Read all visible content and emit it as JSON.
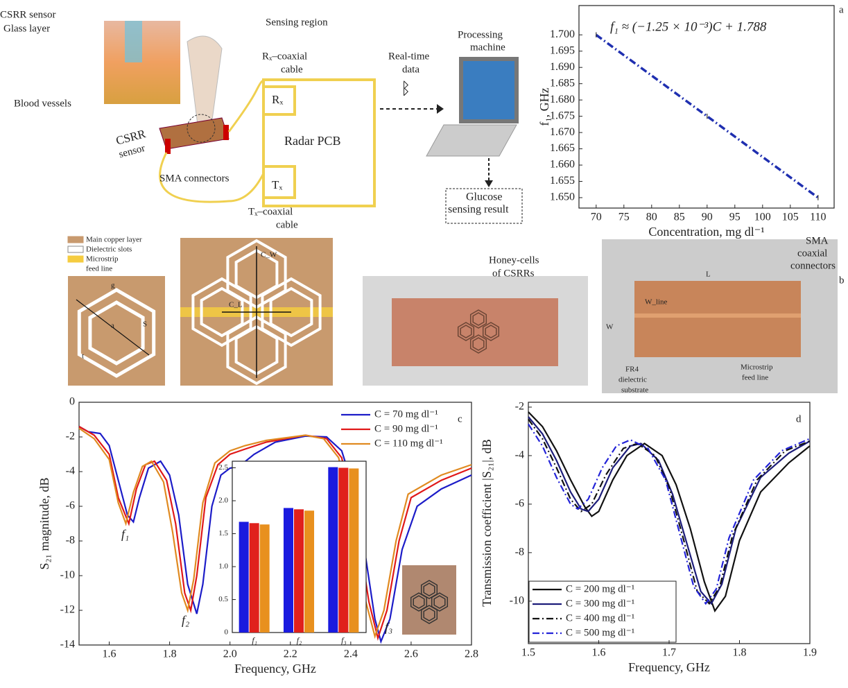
{
  "chart_data": [
    {
      "type": "line",
      "label": "a",
      "annotation": "f₁ ≈ (−1.25 × 10⁻³)C + 1.788",
      "x_label": "Concentration, mg dl⁻¹",
      "y_label": "f₁, GHz",
      "xlim": [
        66.9,
        112.9
      ],
      "ylim": [
        1.6468,
        1.709
      ],
      "xticks": [
        70,
        75,
        80,
        85,
        90,
        95,
        100,
        105,
        110
      ],
      "yticks": [
        {
          "value": 1.65,
          "label": "1.650"
        },
        1.655,
        {
          "value": 1.66,
          "label": "1.660"
        },
        1.665,
        {
          "value": 1.67,
          "label": "1.670"
        },
        1.675,
        {
          "value": 1.68,
          "label": "1.680"
        },
        1.685,
        {
          "value": 1.69,
          "label": "1.690"
        },
        1.695,
        {
          "value": 1.7,
          "label": "1.700"
        }
      ],
      "series": [
        {
          "color": "#1f2fb0",
          "dash": "dashdot",
          "x": [
            70,
            90,
            110
          ],
          "values": [
            1.7,
            1.675,
            1.65
          ],
          "errors": [
            0.0008,
            0.0008,
            0.0008
          ]
        }
      ]
    },
    {
      "type": "line",
      "label": "c",
      "x_label": "Frequency, GHz",
      "y_label": "S₂₁ magnitude, dB",
      "annotations": [
        "f₁",
        "f₂",
        "f₃"
      ],
      "legend": "upper right",
      "xlim": [
        1.5,
        2.8
      ],
      "ylim": [
        -14,
        0
      ],
      "xticks": [
        1.6,
        1.8,
        {
          "value": 2,
          "label": "2.0"
        },
        2.2,
        2.4,
        2.6,
        2.8
      ],
      "yticks": [
        0,
        -2,
        -4,
        -6,
        -8,
        -10,
        -12,
        -14
      ],
      "series": [
        {
          "name": "C = 70 mg dl⁻¹",
          "color": "#1c1cc8",
          "dash": "solid",
          "x": [
            1.5,
            1.53,
            1.57,
            1.6,
            1.63,
            1.66,
            1.68,
            1.7,
            1.73,
            1.77,
            1.8,
            1.83,
            1.86,
            1.89,
            1.91,
            1.94,
            1.97,
            2.0,
            2.03,
            2.08,
            2.15,
            2.25,
            2.32,
            2.37,
            2.41,
            2.45,
            2.48,
            2.5,
            2.53,
            2.57,
            2.62,
            2.7,
            2.8
          ],
          "values": [
            -1.4,
            -1.7,
            -1.8,
            -2.5,
            -4.5,
            -6.5,
            -6.9,
            -5.5,
            -3.8,
            -3.4,
            -4.2,
            -6.5,
            -10.5,
            -12.2,
            -10.5,
            -6,
            -4.2,
            -3.8,
            -3.7,
            -3,
            -2.3,
            -1.95,
            -2,
            -2.8,
            -5,
            -9,
            -12.5,
            -13.8,
            -12.5,
            -8.5,
            -6,
            -5,
            -4.2
          ]
        },
        {
          "name": "C = 90 mg dl⁻¹",
          "color": "#e01818",
          "dash": "solid",
          "x": [
            1.5,
            1.55,
            1.6,
            1.63,
            1.665,
            1.69,
            1.72,
            1.75,
            1.79,
            1.82,
            1.85,
            1.87,
            1.89,
            1.92,
            1.96,
            2.0,
            2.05,
            2.12,
            2.25,
            2.32,
            2.37,
            2.42,
            2.46,
            2.49,
            2.52,
            2.56,
            2.6,
            2.7,
            2.8
          ],
          "values": [
            -1.4,
            -1.9,
            -3,
            -5.5,
            -7,
            -5,
            -3.6,
            -3.4,
            -4.5,
            -7,
            -11,
            -12,
            -10,
            -5.5,
            -3.6,
            -3,
            -2.7,
            -2.3,
            -1.9,
            -2.1,
            -3.2,
            -7,
            -11.5,
            -13.6,
            -12,
            -8,
            -5.5,
            -4.5,
            -3.8
          ]
        },
        {
          "name": "C = 110 mg dl⁻¹",
          "color": "#e08a20",
          "dash": "solid",
          "x": [
            1.5,
            1.55,
            1.6,
            1.63,
            1.655,
            1.68,
            1.71,
            1.74,
            1.78,
            1.81,
            1.84,
            1.86,
            1.88,
            1.91,
            1.95,
            2.0,
            2.05,
            2.12,
            2.25,
            2.31,
            2.36,
            2.41,
            2.45,
            2.48,
            2.51,
            2.55,
            2.59,
            2.7,
            2.8
          ],
          "values": [
            -1.5,
            -2.1,
            -3.3,
            -5.8,
            -7,
            -5.2,
            -3.7,
            -3.4,
            -4.6,
            -7.5,
            -11,
            -12,
            -10.2,
            -5.8,
            -3.5,
            -2.8,
            -2.5,
            -2.2,
            -1.9,
            -2.1,
            -3.2,
            -7,
            -11.5,
            -13.5,
            -12,
            -8,
            -5.3,
            -4.2,
            -3.6
          ]
        }
      ]
    },
    {
      "type": "bar",
      "categories": [
        "f₁",
        "f₂",
        "f₃"
      ],
      "ylim": [
        0,
        2.6
      ],
      "yticks": [
        0,
        0.5,
        {
          "value": 1,
          "label": "1.0"
        },
        1.5,
        {
          "value": 2,
          "label": "2.0"
        },
        2.5
      ],
      "series": [
        {
          "color": "#1a1adf",
          "values": [
            1.68,
            1.89,
            2.51
          ]
        },
        {
          "color": "#e0201c",
          "values": [
            1.66,
            1.87,
            2.5
          ]
        },
        {
          "color": "#e8901e",
          "values": [
            1.64,
            1.85,
            2.49
          ]
        }
      ]
    },
    {
      "type": "line",
      "label": "d",
      "x_label": "Frequency, GHz",
      "y_label": "Transmission coefficient |S₂₁|, dB",
      "legend": "lower left",
      "xlim": [
        1.5,
        1.9
      ],
      "ylim": [
        -11.75,
        -1.8
      ],
      "xticks": [
        1.5,
        1.6,
        1.7,
        1.8,
        1.9
      ],
      "yticks": [
        -2,
        -4,
        -6,
        -8,
        -10
      ],
      "series": [
        {
          "name": "C = 200 mg dl⁻¹",
          "color": "#111111",
          "dash": "solid",
          "x": [
            1.5,
            1.52,
            1.54,
            1.56,
            1.58,
            1.59,
            1.6,
            1.62,
            1.64,
            1.665,
            1.69,
            1.71,
            1.73,
            1.75,
            1.765,
            1.78,
            1.8,
            1.83,
            1.87,
            1.9
          ],
          "values": [
            -2.2,
            -2.8,
            -3.8,
            -5,
            -6.1,
            -6.5,
            -6.3,
            -5,
            -4,
            -3.5,
            -4,
            -5.2,
            -7,
            -9.2,
            -10.4,
            -9.8,
            -7.5,
            -5.5,
            -4.3,
            -3.6
          ]
        },
        {
          "name": "C = 300 mg dl⁻¹",
          "color": "#1c1c7a",
          "dash": "solid",
          "x": [
            1.5,
            1.52,
            1.54,
            1.56,
            1.575,
            1.585,
            1.6,
            1.62,
            1.645,
            1.66,
            1.685,
            1.705,
            1.725,
            1.745,
            1.76,
            1.775,
            1.795,
            1.83,
            1.87,
            1.9
          ],
          "values": [
            -2.4,
            -3.1,
            -4.2,
            -5.5,
            -6.2,
            -6.3,
            -5.8,
            -4.5,
            -3.6,
            -3.5,
            -4.2,
            -5.6,
            -7.6,
            -9.6,
            -10.1,
            -9.3,
            -7,
            -4.9,
            -3.9,
            -3.4
          ]
        },
        {
          "name": "C = 400 mg dl⁻¹",
          "color": "#111111",
          "dash": "dashdot",
          "x": [
            1.5,
            1.52,
            1.54,
            1.56,
            1.575,
            1.59,
            1.61,
            1.635,
            1.655,
            1.68,
            1.7,
            1.72,
            1.74,
            1.757,
            1.772,
            1.79,
            1.825,
            1.865,
            1.9
          ],
          "values": [
            -2.5,
            -3.3,
            -4.5,
            -5.8,
            -6.3,
            -6,
            -4.8,
            -3.7,
            -3.5,
            -4,
            -5.3,
            -7.4,
            -9.6,
            -10.1,
            -9.4,
            -7.3,
            -5,
            -3.8,
            -3.4
          ]
        },
        {
          "name": "C = 500 mg dl⁻¹",
          "color": "#2323d8",
          "dash": "dashdot",
          "x": [
            1.5,
            1.52,
            1.54,
            1.56,
            1.57,
            1.585,
            1.605,
            1.625,
            1.645,
            1.67,
            1.695,
            1.715,
            1.735,
            1.752,
            1.767,
            1.785,
            1.82,
            1.86,
            1.9
          ],
          "values": [
            -2.7,
            -3.6,
            -4.9,
            -6,
            -6.2,
            -5.8,
            -4.5,
            -3.6,
            -3.35,
            -3.7,
            -5,
            -7.2,
            -9.4,
            -10.1,
            -9.5,
            -7.4,
            -5,
            -3.8,
            -3.3
          ]
        }
      ]
    }
  ],
  "schematic": {
    "csrr_sensor_top": "CSRR sensor",
    "glass_layer": "Glass layer",
    "blood_vessels": "Blood vessels",
    "sensing_region": "Sensing region",
    "rx_cable": [
      "Rₓ–coaxial",
      "cable"
    ],
    "csrr_sensor": [
      "CSRR",
      "sensor"
    ],
    "sma_connectors": "SMA connectors",
    "rx": "Rₓ",
    "radar_pcb": "Radar PCB",
    "tx": "Tₓ",
    "tx_cable": [
      "Tₓ–coaxial",
      "cable"
    ],
    "realtime": [
      "Real-time",
      "data"
    ],
    "processing": [
      "Processing",
      "machine"
    ],
    "result": [
      "Glucose",
      "sensing result"
    ]
  },
  "fabrication": {
    "label": "b",
    "legend": [
      "Main copper layer",
      "Dielectric slots",
      "Microstrip",
      "feed line"
    ],
    "dims": [
      "g",
      "a",
      "S",
      "t",
      "C_W",
      "C_L"
    ],
    "honey": [
      "Honey-cells",
      "of CSRRs"
    ],
    "sma": [
      "SMA",
      "coaxial",
      "connectors"
    ],
    "length": "L",
    "width": "W",
    "wline": "W_line",
    "fr4": [
      "FR4",
      "dielectric",
      "substrate"
    ],
    "feed": [
      "Microstrip",
      "feed line"
    ]
  }
}
